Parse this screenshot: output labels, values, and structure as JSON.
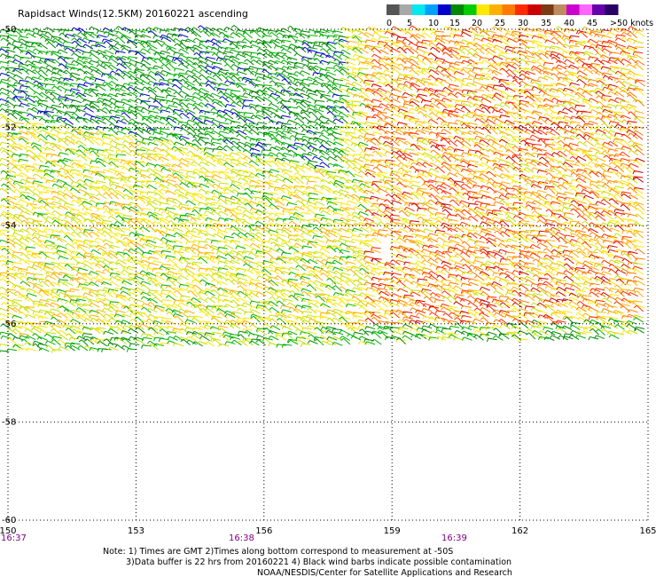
{
  "title": "Rapidsact Winds(12.5KM) 20160221 ascending",
  "colorbar": {
    "labels": [
      "0",
      "5",
      "10",
      "15",
      "20",
      "25",
      "30",
      "35",
      "40",
      "45",
      ">50 knots"
    ],
    "colors": [
      "#555555",
      "#a8a8a8",
      "#00e8f0",
      "#00a0ff",
      "#0000cc",
      "#008800",
      "#00cc00",
      "#ffe800",
      "#ffb000",
      "#ff7a00",
      "#ff2a00",
      "#cc0000",
      "#7a3c14",
      "#c08a60",
      "#cc00cc",
      "#ff66ff",
      "#6600aa",
      "#2a0066"
    ]
  },
  "times": [
    "16:37",
    "16:38",
    "16:39"
  ],
  "notes": {
    "line1": "Note: 1) Times are GMT 2)Times along bottom correspond to measurement at -50S",
    "line2": "3)Data buffer is 22 hrs from 20160221 4) Black wind barbs indicate possible contamination",
    "line3": "NOAA/NESDIS/Center for Satellite Applications and Research"
  },
  "chart_data": {
    "type": "wind barb map",
    "title": "Rapidsact Winds(12.5KM) 20160221 ascending",
    "x_tick_labels": [
      "150",
      "153",
      "156",
      "159",
      "162",
      "165"
    ],
    "y_tick_labels": [
      "-50",
      "-52",
      "-54",
      "-56",
      "-58",
      "-60"
    ],
    "xlim": [
      150,
      165
    ],
    "ylim": [
      -60,
      -50
    ],
    "grid": true,
    "units": "knots",
    "swath_coverage": {
      "lat_max": -50,
      "lat_min_west": -56.6,
      "lat_min_east": -56.3
    },
    "wind_regions": [
      {
        "area": "north-west",
        "speed_range_knots": [
          10,
          20
        ],
        "dominant_color": "green"
      },
      {
        "area": "central band",
        "speed_range_knots": [
          20,
          30
        ],
        "dominant_color": "yellow"
      },
      {
        "area": "east",
        "speed_range_knots": [
          25,
          40
        ],
        "dominant_color": "orange-red"
      },
      {
        "area": "southern edge",
        "speed_range_knots": [
          15,
          25
        ],
        "dominant_color": "green-yellow"
      }
    ]
  }
}
